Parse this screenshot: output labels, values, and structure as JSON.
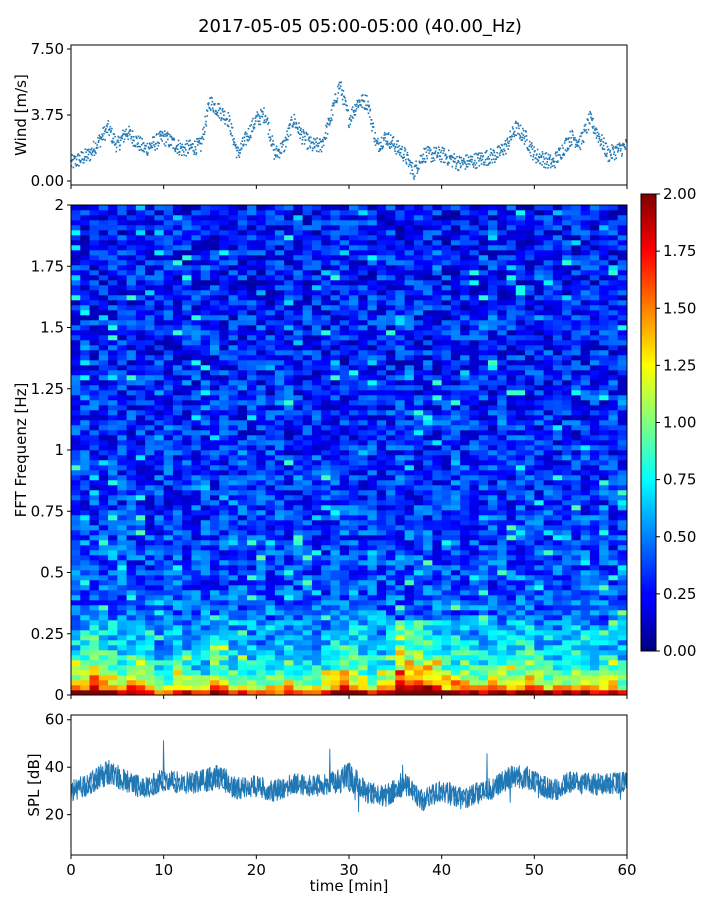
{
  "title": "2017-05-05 05:00-05:00 (40.00_Hz)",
  "chart_data": [
    {
      "panel": "wind",
      "type": "scatter",
      "ylabel": "Wind [m/s]",
      "xlim": [
        0,
        60
      ],
      "ylim": [
        0,
        7.5
      ],
      "yticks": [
        "0.00",
        "3.75",
        "7.50"
      ],
      "color": "#1f77b4",
      "x_min": [
        0,
        2,
        4,
        5,
        6,
        8,
        10,
        12,
        14,
        15,
        16,
        17,
        18,
        19,
        20,
        21,
        22,
        23,
        24,
        25,
        26,
        27,
        28,
        29,
        30,
        31,
        32,
        33,
        34,
        35,
        36,
        37,
        38,
        40,
        42,
        44,
        46,
        47,
        48,
        49,
        50,
        52,
        54,
        55,
        56,
        58,
        60
      ],
      "y": [
        1.0,
        1.5,
        3.0,
        2.0,
        2.8,
        1.8,
        2.5,
        1.8,
        2.0,
        4.5,
        4.0,
        3.5,
        1.5,
        2.5,
        3.5,
        3.8,
        1.5,
        2.0,
        3.5,
        2.5,
        2.0,
        2.0,
        3.5,
        5.5,
        3.5,
        4.5,
        4.5,
        2.0,
        2.5,
        2.0,
        1.5,
        0.5,
        1.5,
        1.5,
        1.0,
        1.2,
        1.5,
        2.0,
        3.0,
        2.5,
        1.5,
        1.0,
        2.5,
        2.2,
        3.5,
        1.5,
        2.0
      ]
    },
    {
      "panel": "spectrogram",
      "type": "heatmap",
      "ylabel": "FFT Frequenz [Hz]",
      "xlim": [
        0,
        60
      ],
      "ylim": [
        0,
        2
      ],
      "yticks": [
        "0",
        "0.25",
        "0.5",
        "0.75",
        "1",
        "1.25",
        "1.5",
        "1.75",
        "2"
      ],
      "colorscale": "jet",
      "color_range": [
        0,
        2.0
      ],
      "colorbar_ticks": [
        "0.00",
        "0.25",
        "0.50",
        "0.75",
        "1.00",
        "1.25",
        "1.50",
        "1.75",
        "2.00"
      ],
      "low_freq_energy_by_minute": [
        1.2,
        1.3,
        1.6,
        1.4,
        1.3,
        1.2,
        1.3,
        1.2,
        1.1,
        1.0,
        1.0,
        1.2,
        1.1,
        1.0,
        1.0,
        1.3,
        1.2,
        1.1,
        1.0,
        1.1,
        1.0,
        1.1,
        1.0,
        1.2,
        1.1,
        1.0,
        1.0,
        1.1,
        1.3,
        1.4,
        1.3,
        1.2,
        1.0,
        1.1,
        1.2,
        1.6,
        1.7,
        1.6,
        1.5,
        1.4,
        1.2,
        1.2,
        1.3,
        1.2,
        1.1,
        1.3,
        1.2,
        1.2,
        1.3,
        1.4,
        1.2,
        1.1,
        1.1,
        1.1,
        1.2,
        1.3,
        1.1,
        1.1,
        1.2,
        1.0
      ],
      "profile_by_frequency_hz": {
        "0.00": 1.9,
        "0.02": 1.3,
        "0.05": 1.0,
        "0.10": 0.75,
        "0.20": 0.55,
        "0.40": 0.4,
        "1.00": 0.32,
        "2.00": 0.28
      }
    },
    {
      "panel": "spl",
      "type": "line",
      "ylabel": "SPL [dB]",
      "xlabel": "time [min]",
      "xlim": [
        0,
        60
      ],
      "ylim": [
        3,
        62
      ],
      "yticks": [
        "20",
        "40",
        "60"
      ],
      "xticks": [
        "0",
        "10",
        "20",
        "30",
        "40",
        "50",
        "60"
      ],
      "color": "#1f77b4",
      "x_min": [
        0,
        2,
        4,
        6,
        8,
        10,
        12,
        14,
        16,
        18,
        20,
        22,
        24,
        26,
        28,
        30,
        32,
        34,
        36,
        38,
        40,
        42,
        44,
        46,
        48,
        50,
        52,
        54,
        56,
        58,
        60
      ],
      "mean_db": [
        30,
        33,
        38,
        34,
        31,
        35,
        33,
        34,
        36,
        31,
        32,
        30,
        33,
        32,
        33,
        36,
        29,
        28,
        33,
        26,
        30,
        27,
        29,
        32,
        37,
        34,
        30,
        34,
        33,
        33,
        34
      ],
      "spread_db": [
        6,
        6,
        7,
        6,
        6,
        6,
        6,
        6,
        7,
        6,
        6,
        6,
        6,
        6,
        6,
        8,
        6,
        6,
        6,
        6,
        6,
        6,
        6,
        6,
        7,
        6,
        6,
        6,
        6,
        6,
        6
      ]
    }
  ]
}
